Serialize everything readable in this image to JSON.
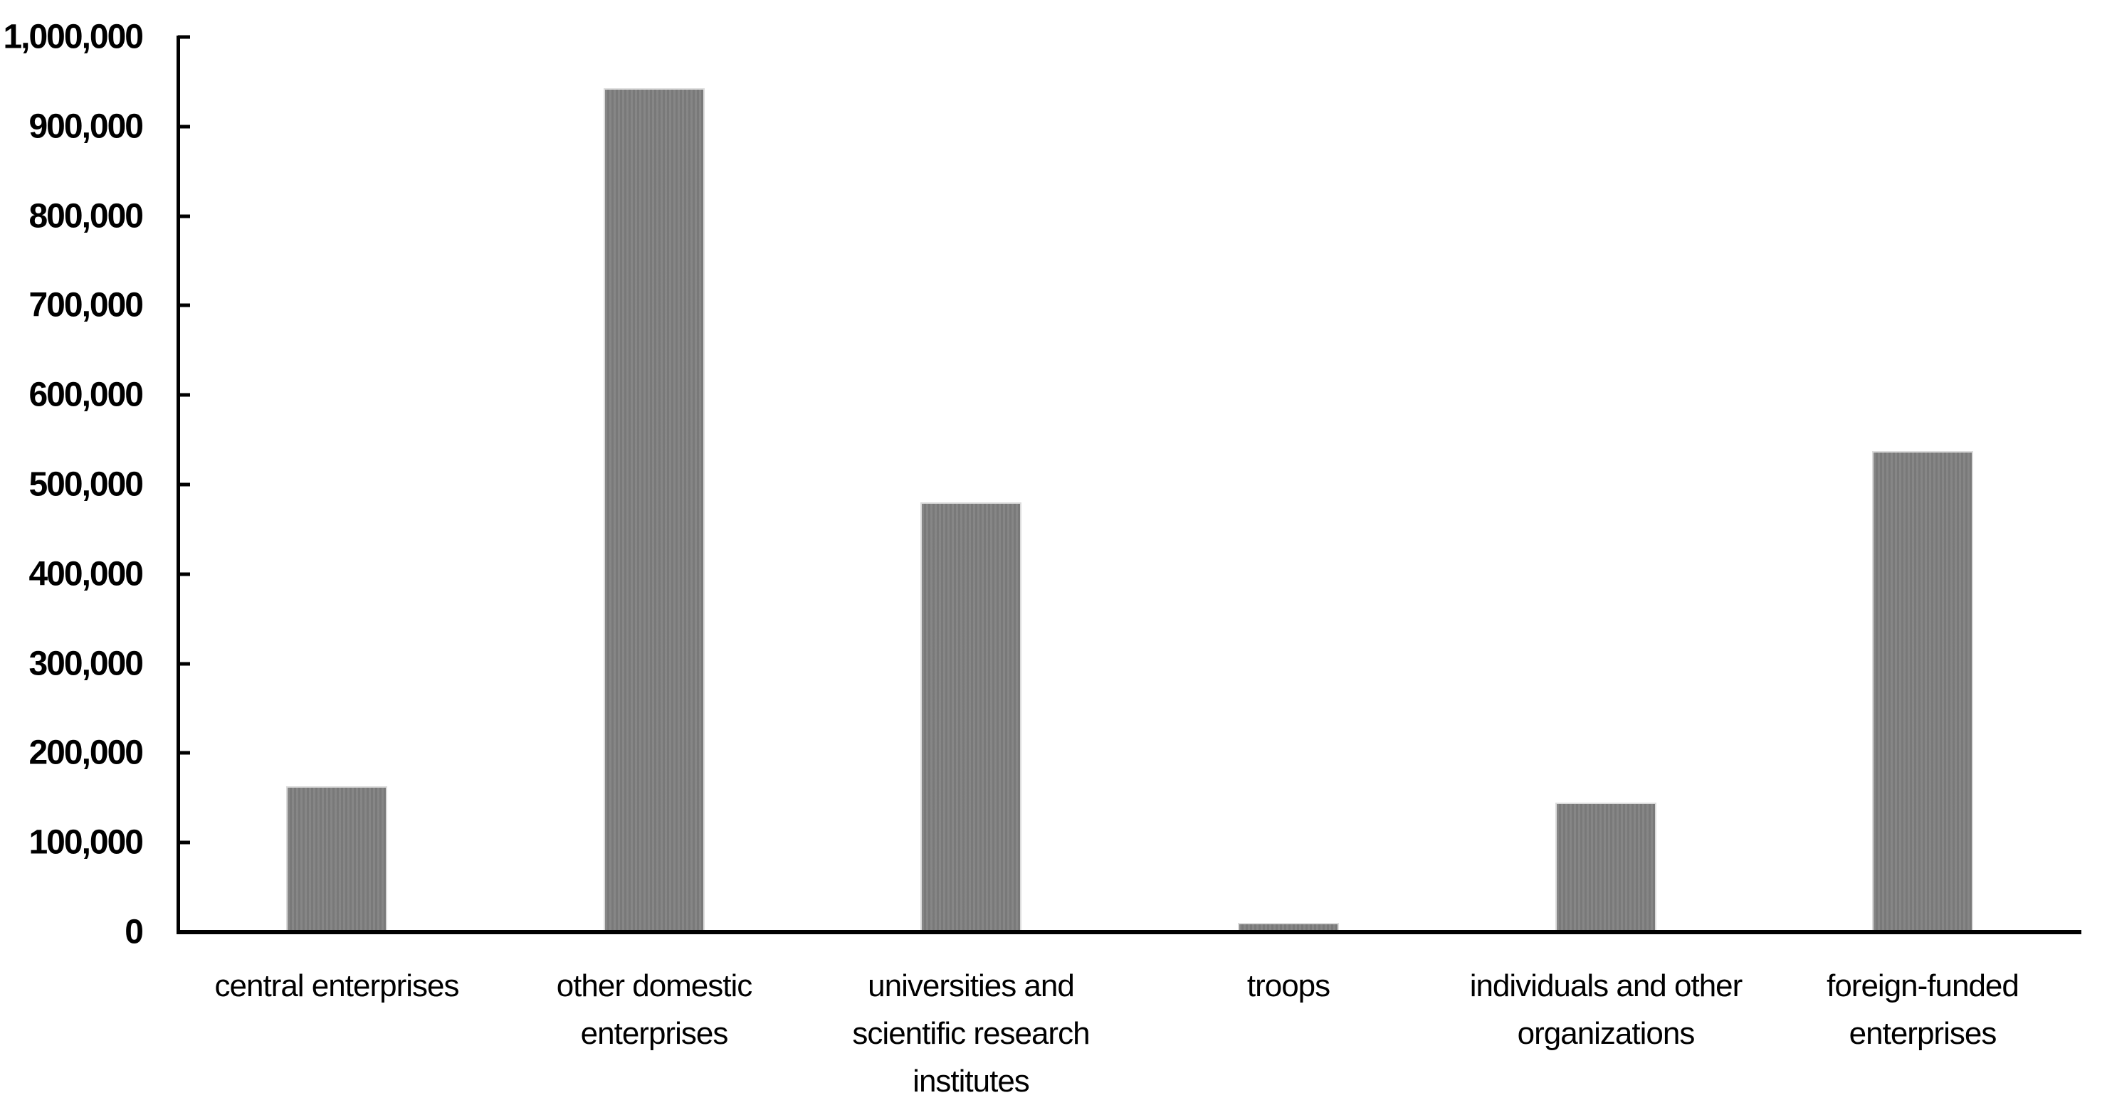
{
  "chart_data": {
    "type": "bar",
    "title": "",
    "xlabel": "",
    "ylabel": "",
    "categories": [
      "central enterprises",
      "other domestic enterprises",
      "universities and scientific research institutes",
      "troops",
      "individuals and other organizations",
      "foreign-funded enterprises"
    ],
    "category_lines": [
      [
        "central enterprises"
      ],
      [
        "other domestic",
        "enterprises"
      ],
      [
        "universities and",
        "scientific research",
        "institutes"
      ],
      [
        "troops"
      ],
      [
        "individuals and other",
        "organizations"
      ],
      [
        "foreign-funded",
        "enterprises"
      ]
    ],
    "values": [
      163000,
      943000,
      480000,
      10000,
      145000,
      537000
    ],
    "ylim": [
      0,
      1000000
    ],
    "y_tick_step": 100000,
    "y_tick_labels": [
      "1,000,000",
      "900,000",
      "800,000",
      "700,000",
      "600,000",
      "500,000",
      "400,000",
      "300,000",
      "200,000",
      "100,000",
      "0"
    ],
    "grid": "off",
    "legend": "none",
    "bar_color": "#7f7f7f",
    "bar_border_color": "#dcdcdc",
    "axis_color": "#000000",
    "text_color": "#000000"
  }
}
